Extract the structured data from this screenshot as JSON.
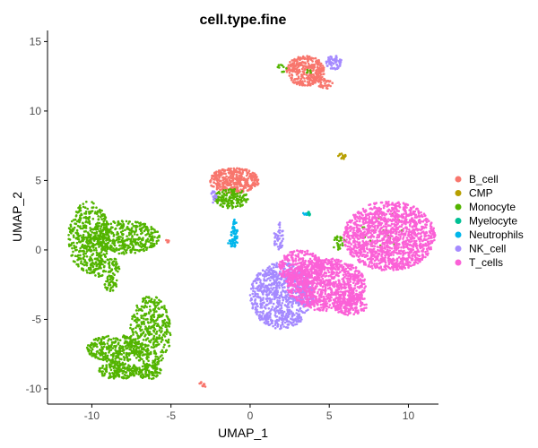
{
  "chart_data": {
    "type": "scatter",
    "title": "cell.type.fine",
    "xlabel": "UMAP_1",
    "ylabel": "UMAP_2",
    "xlim": [
      -12.8,
      11.9
    ],
    "ylim": [
      -11.1,
      15.8
    ],
    "x_ticks": [
      -10,
      -5,
      0,
      5,
      10
    ],
    "y_ticks": [
      -10,
      -5,
      0,
      5,
      10,
      15
    ],
    "grid": false,
    "legend_position": "right",
    "series": [
      {
        "name": "B_cell",
        "color": "#F8766D",
        "clusters": [
          {
            "cx": 3.5,
            "cy": 12.9,
            "rx": 1.2,
            "ry": 1.1,
            "n": 340
          },
          {
            "cx": -1.0,
            "cy": 5.0,
            "rx": 1.6,
            "ry": 0.9,
            "n": 380
          },
          {
            "cx": 4.7,
            "cy": 12.0,
            "rx": 0.5,
            "ry": 0.4,
            "n": 40
          },
          {
            "cx": -3.0,
            "cy": -9.7,
            "rx": 0.25,
            "ry": 0.2,
            "n": 12
          },
          {
            "cx": -5.2,
            "cy": 0.6,
            "rx": 0.15,
            "ry": 0.15,
            "n": 5
          }
        ]
      },
      {
        "name": "CMP",
        "color": "#B79F00",
        "clusters": [
          {
            "cx": 5.8,
            "cy": 6.7,
            "rx": 0.25,
            "ry": 0.3,
            "n": 14
          }
        ]
      },
      {
        "name": "Monocyte",
        "color": "#53B400",
        "clusters": [
          {
            "cx": -10.2,
            "cy": 0.9,
            "rx": 1.3,
            "ry": 2.6,
            "n": 420
          },
          {
            "cx": -8.0,
            "cy": 0.9,
            "rx": 2.3,
            "ry": 1.2,
            "n": 420
          },
          {
            "cx": -9.2,
            "cy": -1.2,
            "rx": 1.0,
            "ry": 0.8,
            "n": 90
          },
          {
            "cx": -8.8,
            "cy": -2.4,
            "rx": 0.4,
            "ry": 0.6,
            "n": 40
          },
          {
            "cx": -6.3,
            "cy": -5.9,
            "rx": 1.3,
            "ry": 2.6,
            "n": 420
          },
          {
            "cx": -8.5,
            "cy": -7.1,
            "rx": 1.8,
            "ry": 1.0,
            "n": 300
          },
          {
            "cx": -8.3,
            "cy": -8.7,
            "rx": 1.3,
            "ry": 0.6,
            "n": 180
          },
          {
            "cx": -6.4,
            "cy": -8.8,
            "rx": 0.8,
            "ry": 0.5,
            "n": 90
          },
          {
            "cx": -1.2,
            "cy": 3.7,
            "rx": 1.1,
            "ry": 0.7,
            "n": 160
          },
          {
            "cx": 3.7,
            "cy": 12.9,
            "rx": 0.2,
            "ry": 0.2,
            "n": 5
          },
          {
            "cx": 2.0,
            "cy": 13.1,
            "rx": 0.3,
            "ry": 0.3,
            "n": 10
          },
          {
            "cx": 5.6,
            "cy": 0.5,
            "rx": 0.4,
            "ry": 0.5,
            "n": 25
          },
          {
            "cx": 8.5,
            "cy": 1.2,
            "rx": 1.5,
            "ry": 1.5,
            "n": 25
          }
        ]
      },
      {
        "name": "Myelocyte",
        "color": "#00C094",
        "clusters": [
          {
            "cx": 3.6,
            "cy": 2.6,
            "rx": 0.2,
            "ry": 0.2,
            "n": 14
          }
        ]
      },
      {
        "name": "Neutrophils",
        "color": "#00B6EB",
        "clusters": [
          {
            "cx": -1.0,
            "cy": 1.2,
            "rx": 0.2,
            "ry": 1.0,
            "n": 40
          },
          {
            "cx": -1.1,
            "cy": 0.5,
            "rx": 0.3,
            "ry": 0.3,
            "n": 20
          },
          {
            "cx": 3.5,
            "cy": 2.6,
            "rx": 0.15,
            "ry": 0.15,
            "n": 5
          }
        ]
      },
      {
        "name": "NK_cell",
        "color": "#A58AFF",
        "clusters": [
          {
            "cx": 2.0,
            "cy": -3.3,
            "rx": 2.0,
            "ry": 2.4,
            "n": 800
          },
          {
            "cx": 5.3,
            "cy": 13.5,
            "rx": 0.5,
            "ry": 0.5,
            "n": 60
          },
          {
            "cx": -2.3,
            "cy": 3.9,
            "rx": 0.2,
            "ry": 0.5,
            "n": 15
          },
          {
            "cx": 1.8,
            "cy": 1.0,
            "rx": 0.3,
            "ry": 1.1,
            "n": 40
          }
        ]
      },
      {
        "name": "T_cells",
        "color": "#FB61D7",
        "clusters": [
          {
            "cx": 8.8,
            "cy": 1.0,
            "rx": 2.9,
            "ry": 2.5,
            "n": 1400
          },
          {
            "cx": 4.8,
            "cy": -2.5,
            "rx": 2.5,
            "ry": 1.9,
            "n": 1000
          },
          {
            "cx": 3.2,
            "cy": -1.3,
            "rx": 1.4,
            "ry": 1.3,
            "n": 350
          },
          {
            "cx": 6.3,
            "cy": -3.9,
            "rx": 1.1,
            "ry": 0.8,
            "n": 150
          }
        ]
      }
    ]
  }
}
